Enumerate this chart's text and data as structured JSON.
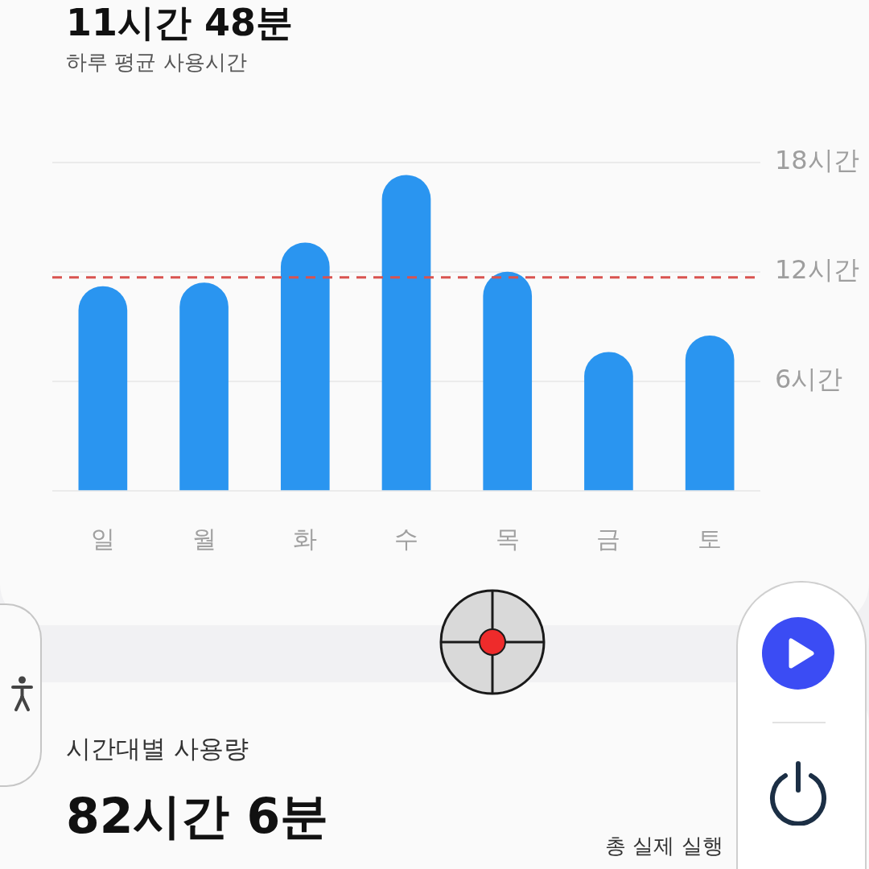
{
  "chart_data": {
    "type": "bar",
    "title": "11시간 48분",
    "subtitle": "하루 평균 사용시간",
    "categories": [
      "일",
      "월",
      "화",
      "수",
      "목",
      "금",
      "토"
    ],
    "values": [
      11.2,
      11.4,
      13.6,
      17.3,
      12.0,
      7.6,
      8.5
    ],
    "color": "#2a95f0",
    "ylim": [
      0,
      18
    ],
    "yticks": [
      {
        "value": 0,
        "label": null
      },
      {
        "value": 6,
        "label": "6시간"
      },
      {
        "value": 12,
        "label": "12시간"
      },
      {
        "value": 18,
        "label": "18시간"
      }
    ],
    "grid": "y",
    "ref_lines": [
      {
        "axis": "y",
        "value": 11.7,
        "color": "#d9534f",
        "line_style": "dashed"
      }
    ],
    "annotations": [
      "시간대별 사용량",
      "82시간 6분",
      "총 실제 실행"
    ]
  }
}
